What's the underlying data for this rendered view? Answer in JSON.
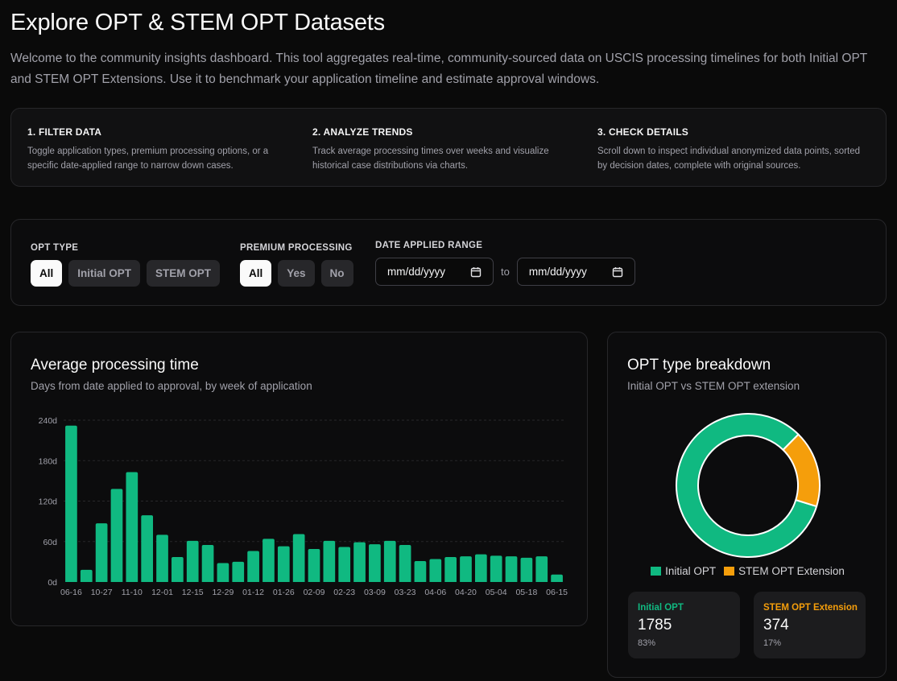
{
  "header": {
    "title": "Explore OPT & STEM OPT Datasets",
    "intro": "Welcome to the community insights dashboard. This tool aggregates real-time, community-sourced data on USCIS processing timelines for both Initial OPT and STEM OPT Extensions. Use it to benchmark your application timeline and estimate approval windows."
  },
  "steps": [
    {
      "title": "1. FILTER DATA",
      "desc": "Toggle application types, premium processing options, or a specific date-applied range to narrow down cases."
    },
    {
      "title": "2. ANALYZE TRENDS",
      "desc": "Track average processing times over weeks and visualize historical case distributions via charts."
    },
    {
      "title": "3. CHECK DETAILS",
      "desc": "Scroll down to inspect individual anonymized data points, sorted by decision dates, complete with original sources."
    }
  ],
  "filters": {
    "opt_type": {
      "label": "OPT TYPE",
      "options": [
        "All",
        "Initial OPT",
        "STEM OPT"
      ],
      "selected": "All"
    },
    "premium": {
      "label": "PREMIUM PROCESSING",
      "options": [
        "All",
        "Yes",
        "No"
      ],
      "selected": "All"
    },
    "date_range": {
      "label": "DATE APPLIED RANGE",
      "from_placeholder": "mm/dd/yyyy",
      "to_label": "to",
      "to_placeholder": "mm/dd/yyyy"
    }
  },
  "colors": {
    "initial": "#10b981",
    "stem": "#f59e0b",
    "grid": "#27272a"
  },
  "processing_chart": {
    "title": "Average processing time",
    "subtitle": "Days from date applied to approval, by week of application"
  },
  "breakdown": {
    "title": "OPT type breakdown",
    "subtitle": "Initial OPT vs STEM OPT extension",
    "legend": [
      "Initial OPT",
      "STEM OPT Extension"
    ],
    "stats": [
      {
        "label": "Initial OPT",
        "value": "1785",
        "pct": "83%"
      },
      {
        "label": "STEM OPT Extension",
        "value": "374",
        "pct": "17%"
      }
    ]
  },
  "chart_data": [
    {
      "type": "bar",
      "ylim": [
        0,
        240
      ],
      "y_ticks": [
        "0d",
        "60d",
        "120d",
        "180d",
        "240d"
      ],
      "x_tick_labels": [
        "06-16",
        "10-27",
        "11-10",
        "12-01",
        "12-15",
        "12-29",
        "01-12",
        "01-26",
        "02-09",
        "02-23",
        "03-09",
        "03-23",
        "04-06",
        "04-20",
        "05-04",
        "05-18",
        "06-15"
      ],
      "values": [
        232,
        18,
        87,
        138,
        163,
        99,
        70,
        37,
        61,
        55,
        28,
        30,
        46,
        64,
        53,
        71,
        49,
        61,
        52,
        59,
        56,
        61,
        55,
        31,
        34,
        37,
        38,
        41,
        39,
        38,
        36,
        38,
        11
      ],
      "grid": true
    },
    {
      "type": "pie",
      "labels": [
        "Initial OPT",
        "STEM OPT Extension"
      ],
      "values": [
        1785,
        374
      ]
    }
  ]
}
